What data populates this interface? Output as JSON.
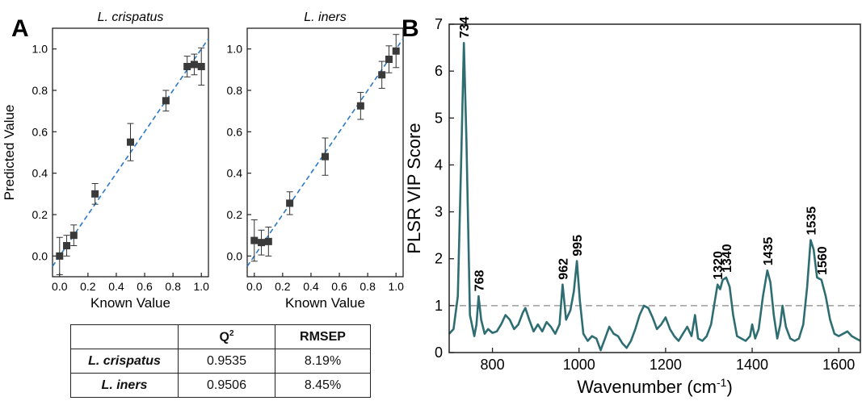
{
  "panel_labels": [
    "A",
    "B"
  ],
  "chart_data": [
    {
      "type": "scatter",
      "title": "L. crispatus",
      "xlabel": "Known Value",
      "ylabel": "Predicted Value",
      "xlim": [
        -0.05,
        1.05
      ],
      "ylim": [
        -0.1,
        1.1
      ],
      "xticks": [
        "0.0",
        "0.2",
        "0.4",
        "0.6",
        "0.8",
        "1.0"
      ],
      "yticks": [
        "0.0",
        "0.2",
        "0.4",
        "0.6",
        "0.8",
        "1.0"
      ],
      "points": [
        {
          "x": 0.0,
          "y": 0.0,
          "err": 0.09
        },
        {
          "x": 0.05,
          "y": 0.05,
          "err": 0.05
        },
        {
          "x": 0.1,
          "y": 0.1,
          "err": 0.05
        },
        {
          "x": 0.25,
          "y": 0.3,
          "err": 0.05
        },
        {
          "x": 0.5,
          "y": 0.55,
          "err": 0.09
        },
        {
          "x": 0.75,
          "y": 0.75,
          "err": 0.05
        },
        {
          "x": 0.9,
          "y": 0.915,
          "err": 0.05
        },
        {
          "x": 0.95,
          "y": 0.925,
          "err": 0.05
        },
        {
          "x": 1.0,
          "y": 0.915,
          "err": 0.09
        }
      ],
      "fit_line": {
        "slope": 1.0,
        "intercept": 0.0,
        "style": "dashed",
        "color": "#2a78c8"
      },
      "marker_color": "#3a3a3a"
    },
    {
      "type": "scatter",
      "title": "L. iners",
      "xlabel": "Known Value",
      "ylabel": "",
      "xlim": [
        -0.05,
        1.05
      ],
      "ylim": [
        -0.1,
        1.1
      ],
      "xticks": [
        "0.0",
        "0.2",
        "0.4",
        "0.6",
        "0.8",
        "1.0"
      ],
      "yticks": [
        "0.0",
        "0.2",
        "0.4",
        "0.6",
        "0.8",
        "1.0"
      ],
      "points": [
        {
          "x": 0.0,
          "y": 0.075,
          "err": 0.1
        },
        {
          "x": 0.05,
          "y": 0.065,
          "err": 0.06
        },
        {
          "x": 0.1,
          "y": 0.07,
          "err": 0.07
        },
        {
          "x": 0.25,
          "y": 0.255,
          "err": 0.055
        },
        {
          "x": 0.5,
          "y": 0.48,
          "err": 0.09
        },
        {
          "x": 0.75,
          "y": 0.725,
          "err": 0.065
        },
        {
          "x": 0.9,
          "y": 0.875,
          "err": 0.065
        },
        {
          "x": 0.95,
          "y": 0.95,
          "err": 0.065
        },
        {
          "x": 1.0,
          "y": 0.99,
          "err": 0.08
        }
      ],
      "fit_line": {
        "slope": 1.0,
        "intercept": 0.0,
        "style": "dashed",
        "color": "#2a78c8"
      },
      "marker_color": "#3a3a3a"
    },
    {
      "type": "line",
      "title": "",
      "xlabel": "Wavenumber (cm",
      "xlabel_superscript": "-1",
      "xlabel_suffix": ")",
      "ylabel": "PLSR VIP Score",
      "xlim": [
        700,
        1650
      ],
      "ylim": [
        0,
        7
      ],
      "xticks": [
        "800",
        "1000",
        "1200",
        "1400",
        "1600"
      ],
      "yticks": [
        "0",
        "1",
        "2",
        "3",
        "4",
        "5",
        "6",
        "7"
      ],
      "threshold": {
        "y": 1,
        "style": "dashed",
        "color": "#888888"
      },
      "line_color": "#2e6e72",
      "series": [
        {
          "x": [
            700,
            710,
            720,
            728,
            734,
            740,
            748,
            758,
            763,
            768,
            774,
            782,
            790,
            800,
            810,
            820,
            830,
            840,
            850,
            860,
            870,
            876,
            885,
            895,
            905,
            915,
            925,
            935,
            945,
            955,
            962,
            970,
            980,
            988,
            995,
            1002,
            1010,
            1020,
            1030,
            1040,
            1050,
            1060,
            1070,
            1080,
            1090,
            1100,
            1110,
            1120,
            1130,
            1140,
            1150,
            1160,
            1170,
            1180,
            1190,
            1200,
            1210,
            1220,
            1230,
            1240,
            1250,
            1260,
            1268,
            1275,
            1285,
            1295,
            1305,
            1312,
            1320,
            1326,
            1332,
            1340,
            1348,
            1356,
            1365,
            1375,
            1385,
            1395,
            1400,
            1407,
            1415,
            1425,
            1435,
            1442,
            1450,
            1458,
            1465,
            1470,
            1478,
            1488,
            1498,
            1508,
            1518,
            1527,
            1535,
            1542,
            1550,
            1560,
            1570,
            1580,
            1590,
            1600,
            1610,
            1620,
            1630,
            1640,
            1650
          ],
          "y": [
            0.4,
            0.5,
            1.2,
            4.2,
            6.6,
            4.5,
            0.8,
            0.35,
            0.6,
            1.2,
            0.7,
            0.4,
            0.5,
            0.42,
            0.45,
            0.6,
            0.8,
            0.7,
            0.5,
            0.6,
            0.85,
            0.95,
            0.7,
            0.45,
            0.6,
            0.45,
            0.65,
            0.55,
            0.4,
            0.6,
            1.45,
            0.7,
            0.9,
            1.3,
            1.95,
            1.1,
            0.4,
            0.25,
            0.35,
            0.3,
            0.05,
            0.3,
            0.55,
            0.4,
            0.35,
            0.2,
            0.1,
            0.25,
            0.5,
            0.8,
            1.0,
            0.95,
            0.75,
            0.5,
            0.6,
            0.75,
            0.5,
            0.35,
            0.25,
            0.4,
            0.55,
            0.35,
            0.8,
            0.3,
            0.25,
            0.35,
            0.6,
            1.0,
            1.45,
            1.35,
            1.55,
            1.6,
            1.4,
            0.8,
            0.35,
            0.3,
            0.25,
            0.35,
            0.6,
            0.3,
            0.5,
            1.2,
            1.75,
            1.5,
            0.8,
            0.3,
            0.6,
            1.0,
            0.55,
            0.3,
            0.25,
            0.3,
            0.6,
            1.4,
            2.4,
            2.2,
            1.6,
            1.55,
            1.2,
            0.7,
            0.4,
            0.35,
            0.4,
            0.45,
            0.35,
            0.3,
            0.25
          ]
        }
      ],
      "annotations": [
        {
          "x": 734,
          "y": 6.6,
          "text": "734"
        },
        {
          "x": 768,
          "y": 1.2,
          "text": "768"
        },
        {
          "x": 962,
          "y": 1.45,
          "text": "962"
        },
        {
          "x": 995,
          "y": 1.95,
          "text": "995"
        },
        {
          "x": 1320,
          "y": 1.45,
          "text": "1320"
        },
        {
          "x": 1340,
          "y": 1.6,
          "text": "1340"
        },
        {
          "x": 1435,
          "y": 1.75,
          "text": "1435"
        },
        {
          "x": 1535,
          "y": 2.4,
          "text": "1535"
        },
        {
          "x": 1560,
          "y": 1.55,
          "text": "1560"
        }
      ]
    }
  ],
  "table": {
    "headers": [
      "",
      "Q2",
      "RMSEP"
    ],
    "rows": [
      [
        "L. crispatus",
        "0.9535",
        "8.19%"
      ],
      [
        "L. iners",
        "0.9506",
        "8.45%"
      ]
    ]
  }
}
